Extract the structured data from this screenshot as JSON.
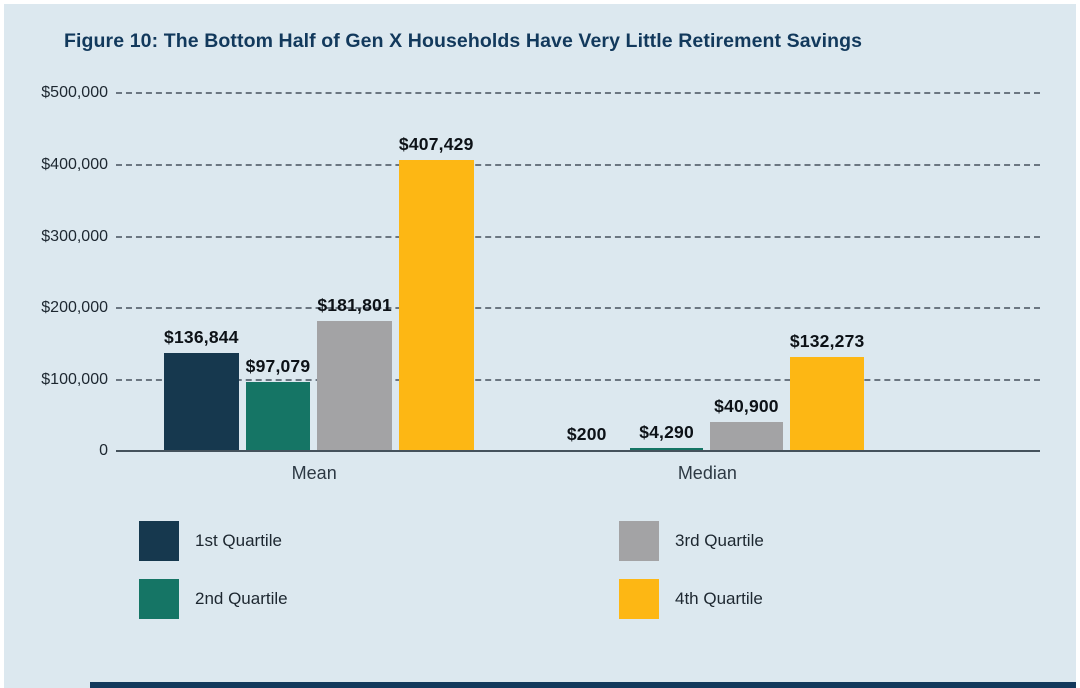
{
  "title": {
    "prefix": "Figure 10:",
    "text": " The Bottom Half of Gen X Households Have Very Little Retirement Savings"
  },
  "colors": {
    "background": "#dce8ef",
    "title": "#12395c",
    "axis_line": "#45525c",
    "gridline": "#58636e",
    "value_label": "#0d1217",
    "footer_bar": "#12395c"
  },
  "chart_data": {
    "type": "bar",
    "title": "Figure 10: The Bottom Half of Gen X Households Have Very Little Retirement Savings",
    "categories": [
      "Mean",
      "Median"
    ],
    "series": [
      {
        "name": "1st Quartile",
        "color": "#16384e",
        "values": [
          136844,
          200
        ],
        "labels": [
          "$136,844",
          "$200"
        ]
      },
      {
        "name": "2nd Quartile",
        "color": "#157565",
        "values": [
          97079,
          4290
        ],
        "labels": [
          "$97,079",
          "$4,290"
        ]
      },
      {
        "name": "3rd Quartile",
        "color": "#a3a3a5",
        "values": [
          181801,
          40900
        ],
        "labels": [
          "$181,801",
          "$40,900"
        ]
      },
      {
        "name": "4th Quartile",
        "color": "#fdb714",
        "values": [
          407429,
          132273
        ],
        "labels": [
          "$407,429",
          "$132,273"
        ]
      }
    ],
    "y_ticks": [
      {
        "value": 0,
        "label": "0"
      },
      {
        "value": 100000,
        "label": "$100,000"
      },
      {
        "value": 200000,
        "label": "$200,000"
      },
      {
        "value": 300000,
        "label": "$300,000"
      },
      {
        "value": 400000,
        "label": "$400,000"
      },
      {
        "value": 500000,
        "label": "$500,000"
      }
    ],
    "ylim": [
      0,
      500000
    ],
    "xlabel": "",
    "ylabel": "",
    "grid": "horizontal-dashed",
    "legend_position": "bottom-two-columns"
  }
}
